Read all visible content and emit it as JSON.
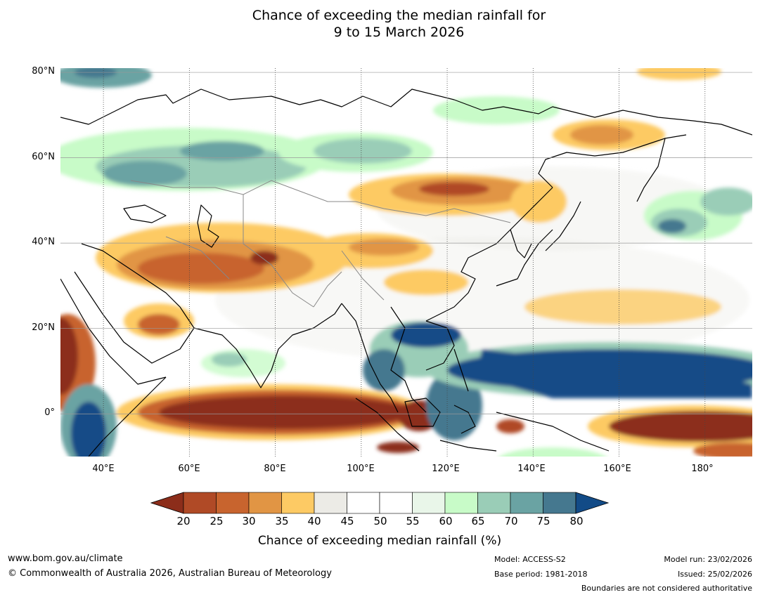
{
  "title": {
    "line1": "Chance of exceeding the median rainfall for",
    "line2": "9 to 15 March 2026"
  },
  "map": {
    "lat_labels": [
      "80°N",
      "60°N",
      "40°N",
      "20°N",
      "0°"
    ],
    "lon_labels": [
      "40°E",
      "60°E",
      "80°E",
      "100°E",
      "120°E",
      "140°E",
      "160°E",
      "180°"
    ],
    "lat_range": [
      -10,
      81
    ],
    "lon_range": [
      30,
      191
    ]
  },
  "colorbar": {
    "ticks": [
      "20",
      "25",
      "30",
      "35",
      "40",
      "45",
      "50",
      "55",
      "60",
      "65",
      "70",
      "75",
      "80"
    ],
    "colors": [
      "#8c2d1a",
      "#b04a26",
      "#c8642e",
      "#e19544",
      "#fdca64",
      "#ecebe6",
      "#ffffff",
      "#ffffff",
      "#e9f6e9",
      "#c8fbc8",
      "#9acdb7",
      "#6aa3a3",
      "#45788f",
      "#124b87"
    ],
    "label": "Chance of exceeding median rainfall (%)"
  },
  "footer": {
    "website": "www.bom.gov.au/climate",
    "copyright": "© Commonwealth of Australia 2026, Australian Bureau of Meteorology",
    "model": "Model: ACCESS-S2",
    "base_period": "Base period: 1981-2018",
    "model_run": "Model run: 23/02/2026",
    "issued": "Issued: 25/02/2026",
    "disclaimer": "Boundaries are not considered authoritative"
  }
}
